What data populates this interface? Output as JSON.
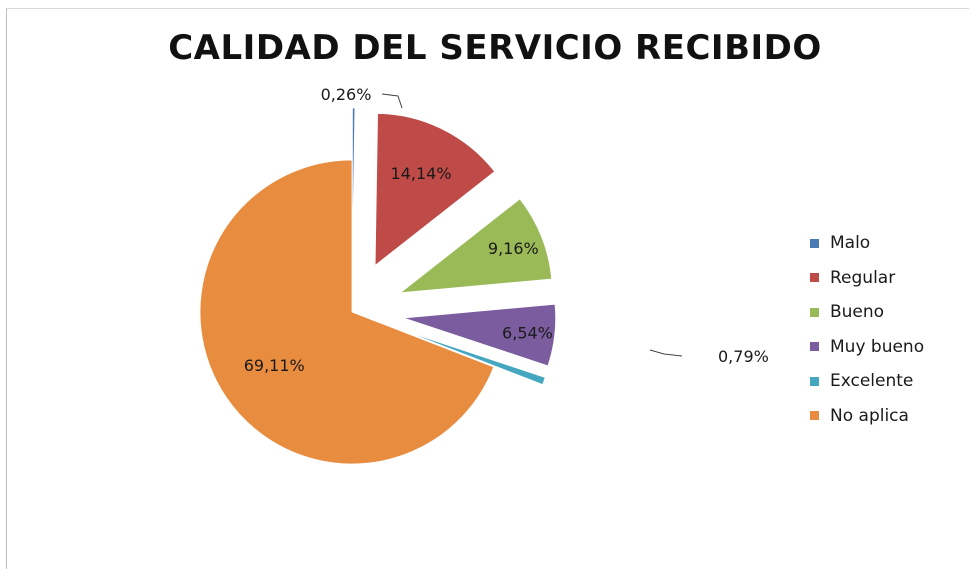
{
  "chart_data": {
    "type": "pie",
    "title": "CALIDAD DEL SERVICIO RECIBIDO",
    "categories": [
      "Malo",
      "Regular",
      "Bueno",
      "Muy bueno",
      "Excelente",
      "No aplica"
    ],
    "values": [
      0.26,
      14.14,
      9.16,
      6.54,
      0.79,
      69.11
    ],
    "labels": [
      "0,26%",
      "14,14%",
      "9,16%",
      "6,54%",
      "0,79%",
      "69,11%"
    ],
    "colors": [
      "#4a7ab4",
      "#bf4b48",
      "#9aba58",
      "#7b5d9f",
      "#45a6c0",
      "#e88c3f"
    ],
    "legend_position": "right",
    "exploded": true
  }
}
